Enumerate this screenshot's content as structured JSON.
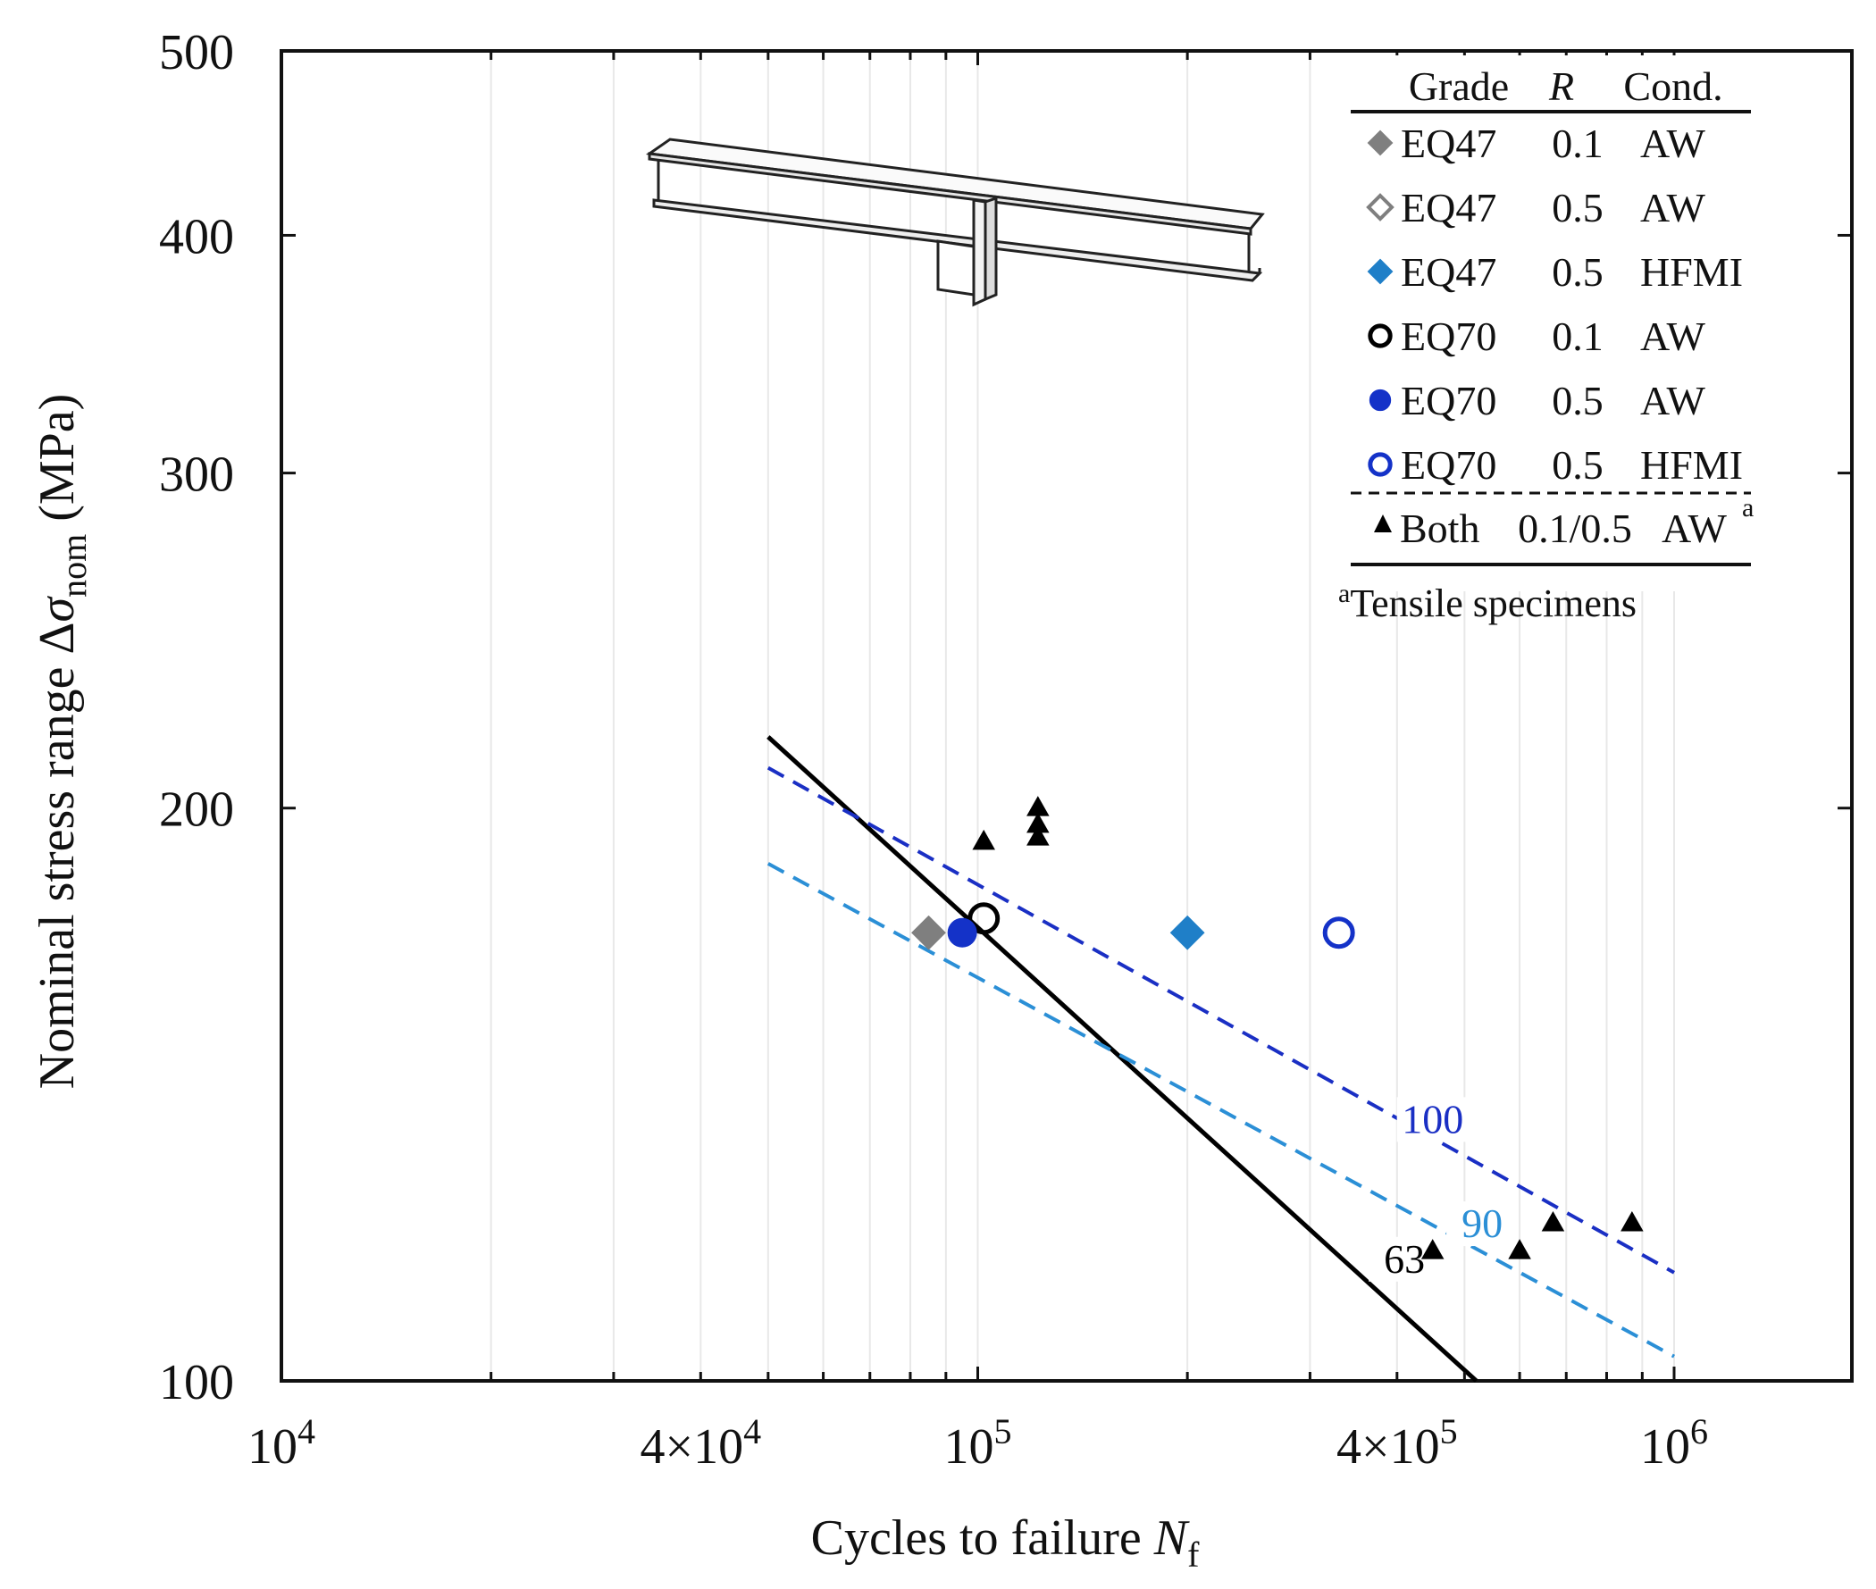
{
  "chart_data": {
    "type": "scatter",
    "xscale": "log",
    "yscale": "log",
    "xlim": [
      10000,
      1800000
    ],
    "ylim": [
      100,
      500
    ],
    "xlabel": {
      "main": "Cycles to failure ",
      "var": "N",
      "sub": "f"
    },
    "ylabel": {
      "main": "Nominal stress range Δ",
      "var": "σ",
      "sub": "nom",
      "unit": " (MPa)"
    },
    "x_ticks": [
      {
        "value": 10000,
        "base": "10",
        "exp": "4"
      },
      {
        "value": 40000,
        "base": "4×10",
        "exp": "4"
      },
      {
        "value": 100000,
        "base": "10",
        "exp": "5"
      },
      {
        "value": 400000,
        "base": "4×10",
        "exp": "5"
      },
      {
        "value": 1000000,
        "base": "10",
        "exp": "6"
      }
    ],
    "y_ticks": [
      {
        "value": 100,
        "label": "100"
      },
      {
        "value": 200,
        "label": "200"
      },
      {
        "value": 300,
        "label": "300"
      },
      {
        "value": 400,
        "label": "400"
      },
      {
        "value": 500,
        "label": "500"
      }
    ],
    "colors": {
      "gray": "#7f7f7f",
      "light_blue": "#1f7fc8",
      "dark_blue": "#1432c8",
      "black": "#000000",
      "fat90": "#2b8fd6",
      "fat100": "#1a2fc4",
      "fat63": "#000000"
    },
    "legend": {
      "headers": {
        "grade": "Grade",
        "r": "R",
        "cond": "Cond."
      },
      "rows": [
        {
          "grade": "EQ47",
          "r": "0.1",
          "cond": "AW",
          "marker": "diamond",
          "fill": "#7f7f7f",
          "stroke": "#7f7f7f"
        },
        {
          "grade": "EQ47",
          "r": "0.5",
          "cond": "AW",
          "marker": "diamond",
          "fill": "none",
          "stroke": "#7f7f7f"
        },
        {
          "grade": "EQ47",
          "r": "0.5",
          "cond": "HFMI",
          "marker": "diamond",
          "fill": "#1f7fc8",
          "stroke": "#1f7fc8"
        },
        {
          "grade": "EQ70",
          "r": "0.1",
          "cond": "AW",
          "marker": "circle",
          "fill": "none",
          "stroke": "#000000"
        },
        {
          "grade": "EQ70",
          "r": "0.5",
          "cond": "AW",
          "marker": "circle",
          "fill": "#1432c8",
          "stroke": "#1432c8"
        },
        {
          "grade": "EQ70",
          "r": "0.5",
          "cond": "HFMI",
          "marker": "circle",
          "fill": "none",
          "stroke": "#1432c8"
        }
      ],
      "tensile_row": {
        "grade": "Both",
        "r": "0.1/0.5",
        "cond": "AW",
        "sup": "a",
        "marker": "triangle",
        "fill": "#000000"
      },
      "footnote": {
        "sup": "a",
        "text": "Tensile specimens"
      }
    },
    "series": [
      {
        "name": "EQ47 0.1 AW",
        "marker": "diamond",
        "fill": "#7f7f7f",
        "stroke": "#7f7f7f",
        "points": [
          [
            85000,
            172
          ]
        ]
      },
      {
        "name": "EQ47 0.5 AW",
        "marker": "diamond",
        "fill": "none",
        "stroke": "#7f7f7f",
        "points": []
      },
      {
        "name": "EQ47 0.5 HFMI",
        "marker": "diamond",
        "fill": "#1f7fc8",
        "stroke": "#1f7fc8",
        "points": [
          [
            200000,
            172
          ]
        ]
      },
      {
        "name": "EQ70 0.1 AW",
        "marker": "circle",
        "fill": "none",
        "stroke": "#000000",
        "points": [
          [
            102000,
            175
          ]
        ]
      },
      {
        "name": "EQ70 0.5 AW",
        "marker": "circle",
        "fill": "#1432c8",
        "stroke": "#1432c8",
        "points": [
          [
            95000,
            172
          ]
        ]
      },
      {
        "name": "EQ70 0.5 HFMI",
        "marker": "circle",
        "fill": "none",
        "stroke": "#1432c8",
        "points": [
          [
            330000,
            172
          ]
        ]
      },
      {
        "name": "Both 0.1/0.5 AW (tensile)",
        "marker": "triangle",
        "fill": "#000000",
        "stroke": "#000000",
        "points": [
          [
            102000,
            192
          ],
          [
            122000,
            200
          ],
          [
            122000,
            196
          ],
          [
            122000,
            193
          ],
          [
            450000,
            117
          ],
          [
            600000,
            117
          ],
          [
            670000,
            121
          ],
          [
            870000,
            121
          ]
        ]
      }
    ],
    "fat_lines": [
      {
        "label": "63",
        "color": "#000000",
        "dash": false,
        "from": [
          50000,
          218
        ],
        "to": [
          520000,
          100
        ],
        "label_at": [
          410000,
          114
        ]
      },
      {
        "label": "100",
        "color": "#1a2fc4",
        "dash": true,
        "from": [
          50000,
          210
        ],
        "to": [
          1000000,
          114
        ],
        "label_at": [
          450000,
          135
        ]
      },
      {
        "label": "90",
        "color": "#2b8fd6",
        "dash": true,
        "from": [
          50000,
          187
        ],
        "to": [
          1000000,
          103
        ],
        "label_at": [
          530000,
          119
        ]
      }
    ]
  }
}
